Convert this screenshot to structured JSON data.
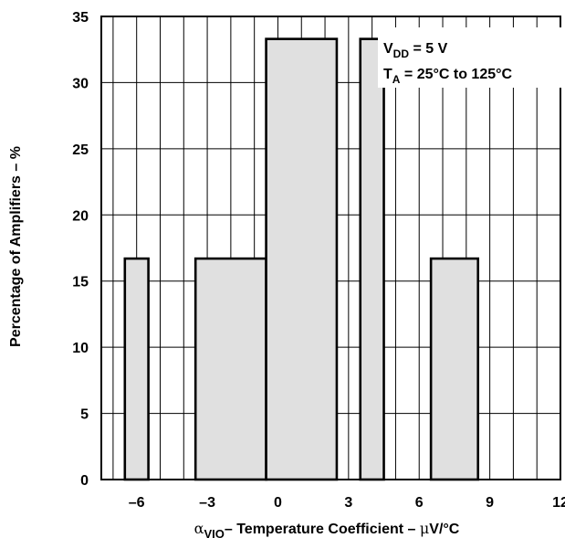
{
  "chart_data": {
    "type": "bar",
    "title": "",
    "xlabel_main": "– Temperature Coefficient – ",
    "xlabel_sym": "α",
    "xlabel_sub": "VIO",
    "xlabel_unit_sym": "μ",
    "xlabel_unit_rest": "V/°C",
    "ylabel": "Percentage of Amplifiers – %",
    "xlim": [
      -7.5,
      12
    ],
    "ylim": [
      0,
      35
    ],
    "xticks": [
      -6,
      -3,
      0,
      3,
      6,
      9,
      12
    ],
    "xtick_labels": [
      "–6",
      "–3",
      "0",
      "3",
      "6",
      "9",
      "12"
    ],
    "yticks": [
      0,
      5,
      10,
      15,
      20,
      25,
      30,
      35
    ],
    "grid": true,
    "bars": [
      {
        "x0": -6.5,
        "x1": -5.5,
        "value": 16.7
      },
      {
        "x0": -3.5,
        "x1": -0.5,
        "value": 16.7
      },
      {
        "x0": -0.5,
        "x1": 2.5,
        "value": 33.3
      },
      {
        "x0": 3.5,
        "x1": 4.5,
        "value": 33.3
      },
      {
        "x0": 6.5,
        "x1": 8.5,
        "value": 16.7
      }
    ],
    "annotation": {
      "line1_main": "V",
      "line1_sub": "DD",
      "line1_rest": " = 5 V",
      "line2_main": "T",
      "line2_sub": "A",
      "line2_rest": " = 25°C to 125°C"
    }
  }
}
